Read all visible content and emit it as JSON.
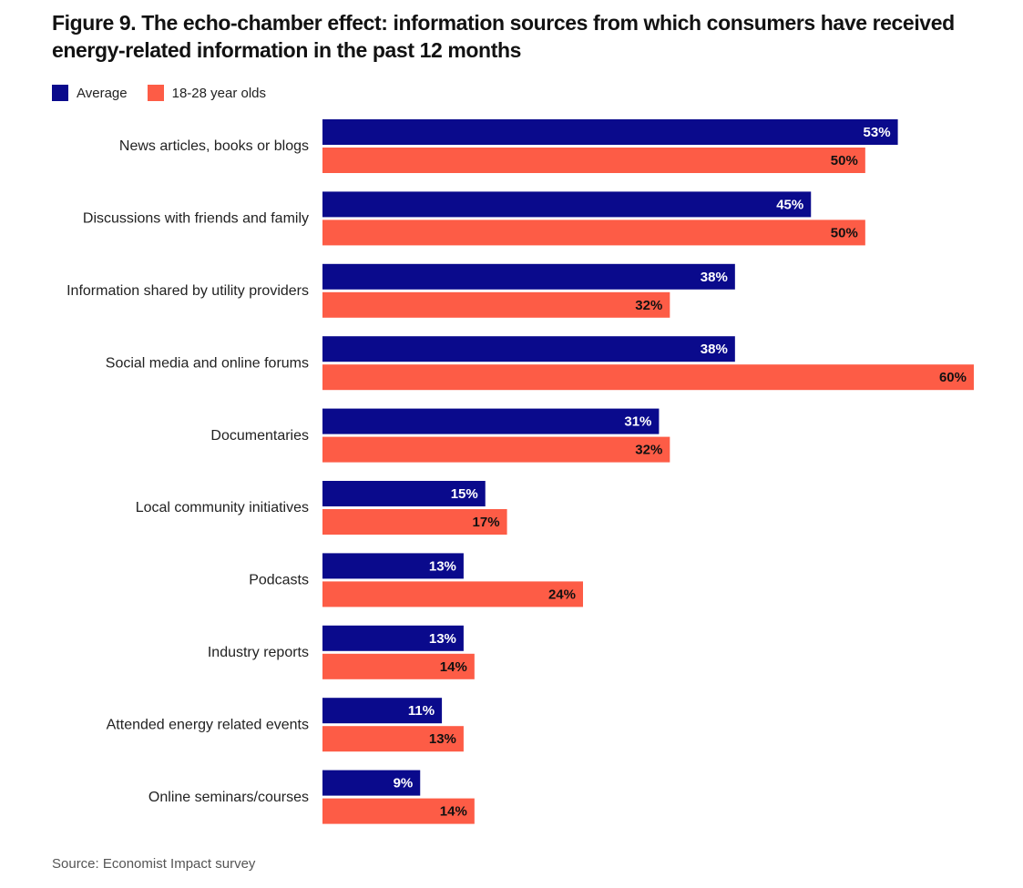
{
  "title": "Figure 9. The echo-chamber effect: information sources from which consumers have received energy-related information in the past 12 months",
  "source": "Source: Economist Impact survey",
  "colors": {
    "average": "#0a0a8c",
    "young": "#fd5c46"
  },
  "chart_data": {
    "type": "bar",
    "orientation": "horizontal",
    "categories": [
      "News articles, books or blogs",
      "Discussions with friends and family",
      "Information shared by utility providers",
      "Social media and online forums",
      "Documentaries",
      "Local community initiatives",
      "Podcasts",
      "Industry reports",
      "Attended energy related events",
      "Online seminars/courses"
    ],
    "series": [
      {
        "name": "Average",
        "values": [
          53,
          45,
          38,
          38,
          31,
          15,
          13,
          13,
          11,
          9
        ],
        "labels": [
          "53%",
          "45%",
          "38%",
          "38%",
          "31%",
          "15%",
          "13%",
          "13%",
          "11%",
          "9%"
        ]
      },
      {
        "name": "18-28 year olds",
        "values": [
          50,
          50,
          32,
          60,
          32,
          17,
          24,
          14,
          13,
          14
        ],
        "labels": [
          "50%",
          "50%",
          "32%",
          "60%",
          "32%",
          "17%",
          "24%",
          "14%",
          "13%",
          "14%"
        ]
      }
    ],
    "unit": "%",
    "xlim": [
      0,
      60
    ],
    "grid": false,
    "legend": "top-left"
  }
}
